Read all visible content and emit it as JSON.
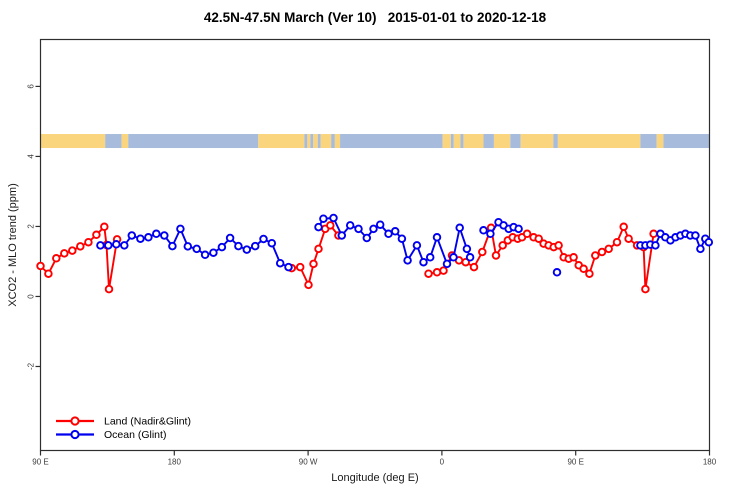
{
  "chart_data": {
    "type": "line",
    "title": "42.5N-47.5N March (Ver 10)   2015-01-01 to 2020-12-18",
    "xlabel": "Longitude (deg E)",
    "ylabel": "XCO2 - MLO trend (ppm)",
    "xlim": [
      90,
      540
    ],
    "ylim": [
      -4.4,
      7.34
    ],
    "grid": false,
    "legend_position": "bottom-left",
    "x_ticks": [
      {
        "pos": 90,
        "label": "90 E"
      },
      {
        "pos": 180,
        "label": "180"
      },
      {
        "pos": 270,
        "label": "90 W"
      },
      {
        "pos": 360,
        "label": "0"
      },
      {
        "pos": 450,
        "label": "90 E"
      },
      {
        "pos": 540,
        "label": "180"
      }
    ],
    "y_ticks": [
      {
        "pos": -2,
        "label": "-2"
      },
      {
        "pos": 0,
        "label": "0"
      },
      {
        "pos": 2,
        "label": "2"
      },
      {
        "pos": 4,
        "label": "4"
      },
      {
        "pos": 6,
        "label": "6"
      }
    ],
    "map_band": {
      "value_top": 4.64,
      "value_bottom": 4.24,
      "land_color": "#fbd57e",
      "ocean_color": "#a7bcdc",
      "segments": [
        {
          "from": 90,
          "to": 133.5,
          "type": "land"
        },
        {
          "from": 133.5,
          "to": 144.5,
          "type": "ocean"
        },
        {
          "from": 144.5,
          "to": 149,
          "type": "land"
        },
        {
          "from": 149,
          "to": 236.5,
          "type": "ocean"
        },
        {
          "from": 236.5,
          "to": 267.5,
          "type": "land"
        },
        {
          "from": 267.5,
          "to": 269.5,
          "type": "ocean"
        },
        {
          "from": 269.5,
          "to": 271.5,
          "type": "land"
        },
        {
          "from": 271.5,
          "to": 273.5,
          "type": "ocean"
        },
        {
          "from": 273.5,
          "to": 276.5,
          "type": "land"
        },
        {
          "from": 276.5,
          "to": 278.5,
          "type": "ocean"
        },
        {
          "from": 278.5,
          "to": 285.5,
          "type": "land"
        },
        {
          "from": 285.5,
          "to": 288,
          "type": "ocean"
        },
        {
          "from": 288,
          "to": 291.5,
          "type": "land"
        },
        {
          "from": 291.5,
          "to": 360.5,
          "type": "ocean"
        },
        {
          "from": 360.5,
          "to": 366,
          "type": "land"
        },
        {
          "from": 366,
          "to": 368,
          "type": "ocean"
        },
        {
          "from": 368,
          "to": 372.5,
          "type": "land"
        },
        {
          "from": 372.5,
          "to": 374.5,
          "type": "ocean"
        },
        {
          "from": 374.5,
          "to": 388,
          "type": "land"
        },
        {
          "from": 388,
          "to": 395,
          "type": "ocean"
        },
        {
          "from": 395,
          "to": 406,
          "type": "land"
        },
        {
          "from": 406,
          "to": 413,
          "type": "ocean"
        },
        {
          "from": 413,
          "to": 435,
          "type": "land"
        },
        {
          "from": 435,
          "to": 438,
          "type": "ocean"
        },
        {
          "from": 438,
          "to": 493.5,
          "type": "land"
        },
        {
          "from": 493.5,
          "to": 504.5,
          "type": "ocean"
        },
        {
          "from": 504.5,
          "to": 509,
          "type": "land"
        },
        {
          "from": 509,
          "to": 540,
          "type": "ocean"
        }
      ]
    },
    "series": [
      {
        "name": "Land (Nadir&Glint)",
        "slug": "land-nadir-glint",
        "color": "#ff0000",
        "segments": [
          [
            [
              90,
              0.87
            ],
            [
              95.3,
              0.65
            ],
            [
              100.6,
              1.09
            ],
            [
              106,
              1.23
            ],
            [
              111.4,
              1.31
            ],
            [
              116.8,
              1.43
            ],
            [
              122.2,
              1.55
            ],
            [
              127.6,
              1.76
            ],
            [
              132.9,
              1.99
            ],
            [
              134.4,
              1.47
            ],
            [
              136.1,
              0.21
            ],
            [
              141.5,
              1.63
            ]
          ],
          [
            [
              259,
              0.81
            ],
            [
              264.7,
              0.84
            ],
            [
              270.3,
              0.33
            ],
            [
              273.6,
              0.93
            ],
            [
              277,
              1.36
            ],
            [
              281.5,
              1.93
            ],
            [
              284.9,
              2.03
            ],
            [
              290.4,
              1.74
            ]
          ],
          [
            [
              351,
              0.65
            ],
            [
              356.7,
              0.69
            ],
            [
              361.1,
              0.74
            ],
            [
              366.8,
              1.17
            ],
            [
              371.5,
              1.03
            ],
            [
              376,
              0.98
            ],
            [
              381.6,
              0.84
            ],
            [
              387.2,
              1.27
            ],
            [
              393.1,
              1.96
            ],
            [
              396.4,
              1.17
            ],
            [
              400.9,
              1.46
            ],
            [
              404.3,
              1.6
            ],
            [
              407.6,
              1.69
            ],
            [
              411,
              1.65
            ],
            [
              413.9,
              1.69
            ],
            [
              417.3,
              1.79
            ],
            [
              421.7,
              1.69
            ],
            [
              425.1,
              1.65
            ],
            [
              428.4,
              1.51
            ],
            [
              431.8,
              1.46
            ],
            [
              435.2,
              1.41
            ],
            [
              438.5,
              1.46
            ],
            [
              441.9,
              1.12
            ],
            [
              445.3,
              1.08
            ],
            [
              448.6,
              1.12
            ],
            [
              452,
              0.89
            ],
            [
              455.3,
              0.79
            ],
            [
              459.2,
              0.65
            ],
            [
              463.2,
              1.17
            ],
            [
              467.7,
              1.27
            ],
            [
              472.2,
              1.36
            ],
            [
              477.8,
              1.55
            ],
            [
              482.3,
              1.99
            ],
            [
              485.6,
              1.65
            ],
            [
              491.3,
              1.46
            ],
            [
              495.7,
              1.41
            ],
            [
              496.9,
              0.21
            ],
            [
              502.4,
              1.79
            ]
          ]
        ]
      },
      {
        "name": "Ocean (Glint)",
        "slug": "ocean-glint",
        "color": "#0000ee",
        "segments": [
          [
            [
              130.3,
              1.46
            ],
            [
              135.6,
              1.46
            ],
            [
              141,
              1.49
            ],
            [
              146.4,
              1.46
            ],
            [
              151.4,
              1.74
            ],
            [
              157.2,
              1.65
            ],
            [
              162.6,
              1.69
            ],
            [
              167.9,
              1.79
            ],
            [
              173.3,
              1.74
            ],
            [
              178.7,
              1.44
            ],
            [
              184.1,
              1.93
            ],
            [
              189.1,
              1.43
            ],
            [
              195.1,
              1.36
            ],
            [
              200.7,
              1.19
            ],
            [
              206.3,
              1.25
            ],
            [
              212,
              1.41
            ],
            [
              217.5,
              1.67
            ],
            [
              223.1,
              1.44
            ],
            [
              228.8,
              1.34
            ],
            [
              234.4,
              1.44
            ],
            [
              240,
              1.64
            ],
            [
              245.6,
              1.52
            ],
            [
              251.2,
              0.95
            ],
            [
              256.8,
              0.84
            ]
          ],
          [
            [
              277,
              1.98
            ],
            [
              280.3,
              2.22
            ],
            [
              287.1,
              2.24
            ],
            [
              292.7,
              1.74
            ],
            [
              298.3,
              2.03
            ],
            [
              303.9,
              1.93
            ],
            [
              309.5,
              1.67
            ],
            [
              314,
              1.93
            ],
            [
              318.5,
              2.05
            ],
            [
              324.1,
              1.79
            ],
            [
              328.6,
              1.86
            ],
            [
              333.1,
              1.65
            ],
            [
              336.9,
              1.03
            ],
            [
              343.2,
              1.46
            ],
            [
              347.6,
              0.98
            ],
            [
              352.1,
              1.12
            ],
            [
              356.7,
              1.69
            ],
            [
              363.4,
              0.93
            ],
            [
              367.8,
              1.12
            ],
            [
              372,
              1.96
            ],
            [
              376.8,
              1.36
            ],
            [
              379,
              1.12
            ]
          ],
          [
            [
              388,
              1.89
            ],
            [
              392.6,
              1.79
            ],
            [
              398.1,
              2.12
            ],
            [
              401.5,
              2.03
            ],
            [
              404.9,
              1.93
            ],
            [
              408.2,
              1.98
            ],
            [
              411.6,
              1.93
            ]
          ],
          [
            [
              437.4,
              0.69
            ]
          ],
          [
            [
              493.5,
              1.46
            ],
            [
              496.9,
              1.46
            ],
            [
              500.2,
              1.48
            ],
            [
              503.6,
              1.46
            ],
            [
              507,
              1.79
            ],
            [
              510.3,
              1.69
            ],
            [
              513.7,
              1.6
            ],
            [
              517.1,
              1.69
            ],
            [
              520.4,
              1.74
            ],
            [
              523.8,
              1.79
            ],
            [
              527.1,
              1.74
            ],
            [
              530.5,
              1.74
            ],
            [
              533.9,
              1.36
            ],
            [
              537.2,
              1.65
            ],
            [
              539.5,
              1.55
            ]
          ]
        ]
      }
    ],
    "legend": {
      "items": [
        {
          "label": "Land (Nadir&Glint)",
          "color": "#ff0000"
        },
        {
          "label": "Ocean (Glint)",
          "color": "#0000ee"
        }
      ]
    },
    "colors": {
      "background": "#ffffff",
      "axis": "#2e2e2e",
      "tick_label": "#3c3c3c",
      "text": "#000000"
    }
  }
}
